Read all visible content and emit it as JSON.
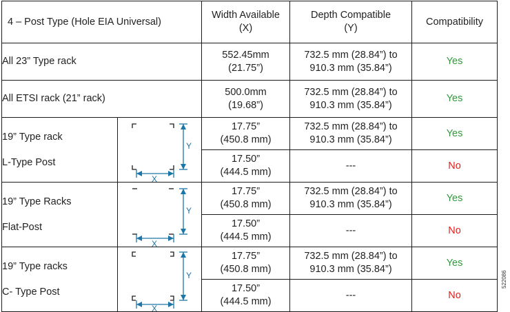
{
  "table": {
    "headers": {
      "type": "4 – Post Type (Hole EIA Universal)",
      "width": "Width Available\n(X)",
      "depth": "Depth Compatible\n(Y)",
      "compat": "Compatibility"
    },
    "rows_full": [
      {
        "name": "All 23” Type rack",
        "width": "552.45mm\n(21.75”)",
        "depth": "732.5 mm (28.84”) to\n910.3 mm (35.84”)",
        "compat": "Yes"
      },
      {
        "name": "All ETSI rack (21” rack)",
        "width": "500.0mm\n(19.68”)",
        "depth": "732.5 mm (28.84”) to\n910.3 mm (35.84”)",
        "compat": "Yes"
      }
    ],
    "groups": [
      {
        "name_line1": "19” Type rack",
        "name_line2": "L-Type Post",
        "diagram": "l-type-post-diagram",
        "rows": [
          {
            "width": "17.75”\n(450.8 mm)",
            "depth": "732.5 mm (28.84”) to\n910.3 mm (35.84”)",
            "compat": "Yes"
          },
          {
            "width": "17.50”\n(444.5 mm)",
            "depth": "---",
            "compat": "No"
          }
        ]
      },
      {
        "name_line1": "19” Type Racks",
        "name_line2": "Flat-Post",
        "diagram": "flat-post-diagram",
        "rows": [
          {
            "width": "17.75”\n(450.8 mm)",
            "depth": "732.5 mm (28.84”) to\n910.3 mm (35.84”)",
            "compat": "Yes"
          },
          {
            "width": "17.50”\n(444.5 mm)",
            "depth": "---",
            "compat": "No"
          }
        ]
      },
      {
        "name_line1": "19” Type racks",
        "name_line2": "C- Type Post",
        "diagram": "c-type-post-diagram",
        "rows": [
          {
            "width": "17.75”\n(450.8 mm)",
            "depth": "732.5 mm (28.84”) to\n910.3 mm (35.84”)",
            "compat": "Yes"
          },
          {
            "width": "17.50”\n(444.5 mm)",
            "depth": "---",
            "compat": "No"
          }
        ]
      }
    ],
    "diagram_labels": {
      "x": "X",
      "y": "Y"
    }
  },
  "figure_id": "522086",
  "colors": {
    "yes": "#2e9a3a",
    "no": "#e0201b",
    "dimension": "#1d76a8"
  }
}
